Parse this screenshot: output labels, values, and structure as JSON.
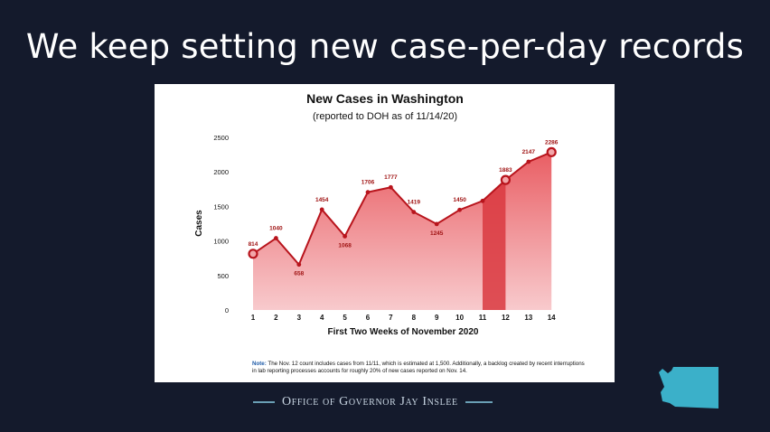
{
  "slide": {
    "title": "We keep setting new case-per-day records",
    "footer": "Office of Governor Jay Inslee"
  },
  "icons": {
    "logo": "washington-state-outline-icon",
    "logo_color": "#3bb0c9"
  },
  "colors": {
    "background": "#141a2c",
    "line": "#b8141c",
    "area": "#ec6e72",
    "highlight_band": "#d9383f"
  },
  "chart_data": {
    "type": "area",
    "title": "New Cases in Washington",
    "subtitle": "(reported to DOH as of 11/14/20)",
    "xlabel": "First Two Weeks of November 2020",
    "ylabel": "Cases",
    "x": [
      1,
      2,
      3,
      4,
      5,
      6,
      7,
      8,
      9,
      10,
      11,
      12,
      13,
      14
    ],
    "values": [
      814,
      1040,
      658,
      1454,
      1068,
      1706,
      1777,
      1419,
      1245,
      1450,
      1580,
      1883,
      2147,
      2286
    ],
    "data_labels": [
      "814",
      "1040",
      "658",
      "1454",
      "1068",
      "1706",
      "1777",
      "1419",
      "1245",
      "1450",
      "",
      "1883",
      "2147",
      "2286"
    ],
    "highlighted_points": [
      1,
      12,
      14
    ],
    "highlight_band": [
      11,
      12
    ],
    "ylim": [
      0,
      2500
    ],
    "yticks": [
      0,
      500,
      1000,
      1500,
      2000,
      2500
    ],
    "grid": false,
    "legend": "none",
    "note_label": "Note:",
    "note": "The Nov. 12 count includes cases from 11/11, which is estimated at 1,500. Additionally, a backlog created by recent interruptions in lab reporting processes accounts for roughly 20% of new cases reported on Nov. 14."
  }
}
